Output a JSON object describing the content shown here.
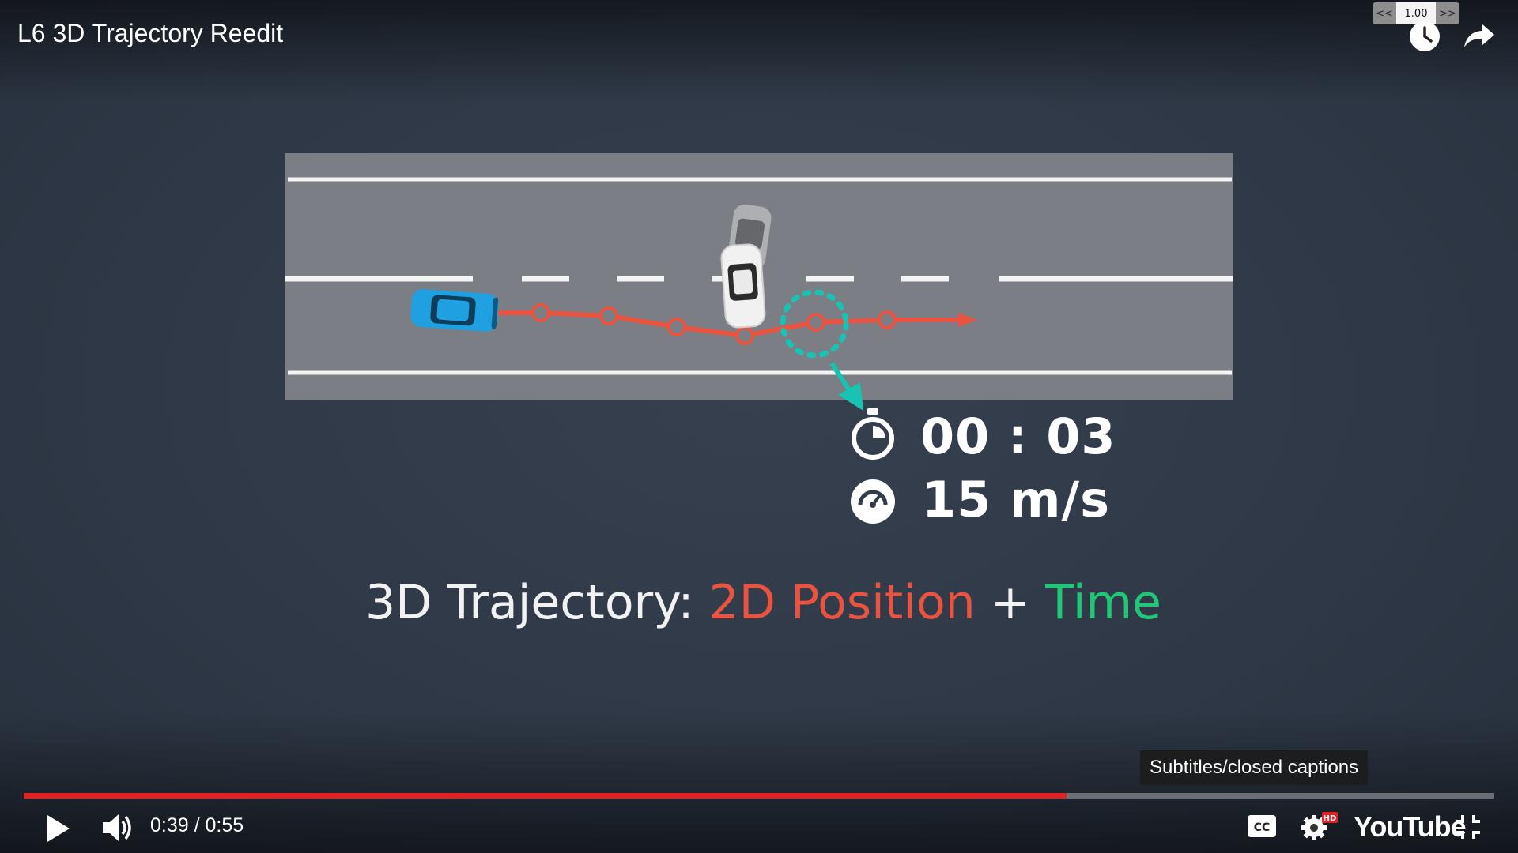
{
  "window": {
    "title": "L6 3D Trajectory Reedit"
  },
  "speed_control": {
    "slower_label": "<<",
    "value": "1.00",
    "faster_label": ">>"
  },
  "top_icons": [
    "clock-icon",
    "share-icon"
  ],
  "scene": {
    "timer_value": "00 : 03",
    "speed_value": "15 m/s",
    "headline_prefix": "3D Trajectory: ",
    "headline_position": "2D Position",
    "headline_plus": " + ",
    "headline_time": "Time",
    "colors": {
      "road": "#7b7e84",
      "trajectory": "#e9533f",
      "highlight": "#17c3b2",
      "ego_car": "#1fa0e0"
    }
  },
  "tooltip": {
    "text": "Subtitles/closed captions"
  },
  "player": {
    "current_time": "0:39",
    "separator": " / ",
    "duration": "0:55",
    "progress_fraction": 0.709,
    "logo_text": "YouTube",
    "hd_badge": "HD",
    "cc_label": "CC",
    "accent": "#e52020"
  }
}
